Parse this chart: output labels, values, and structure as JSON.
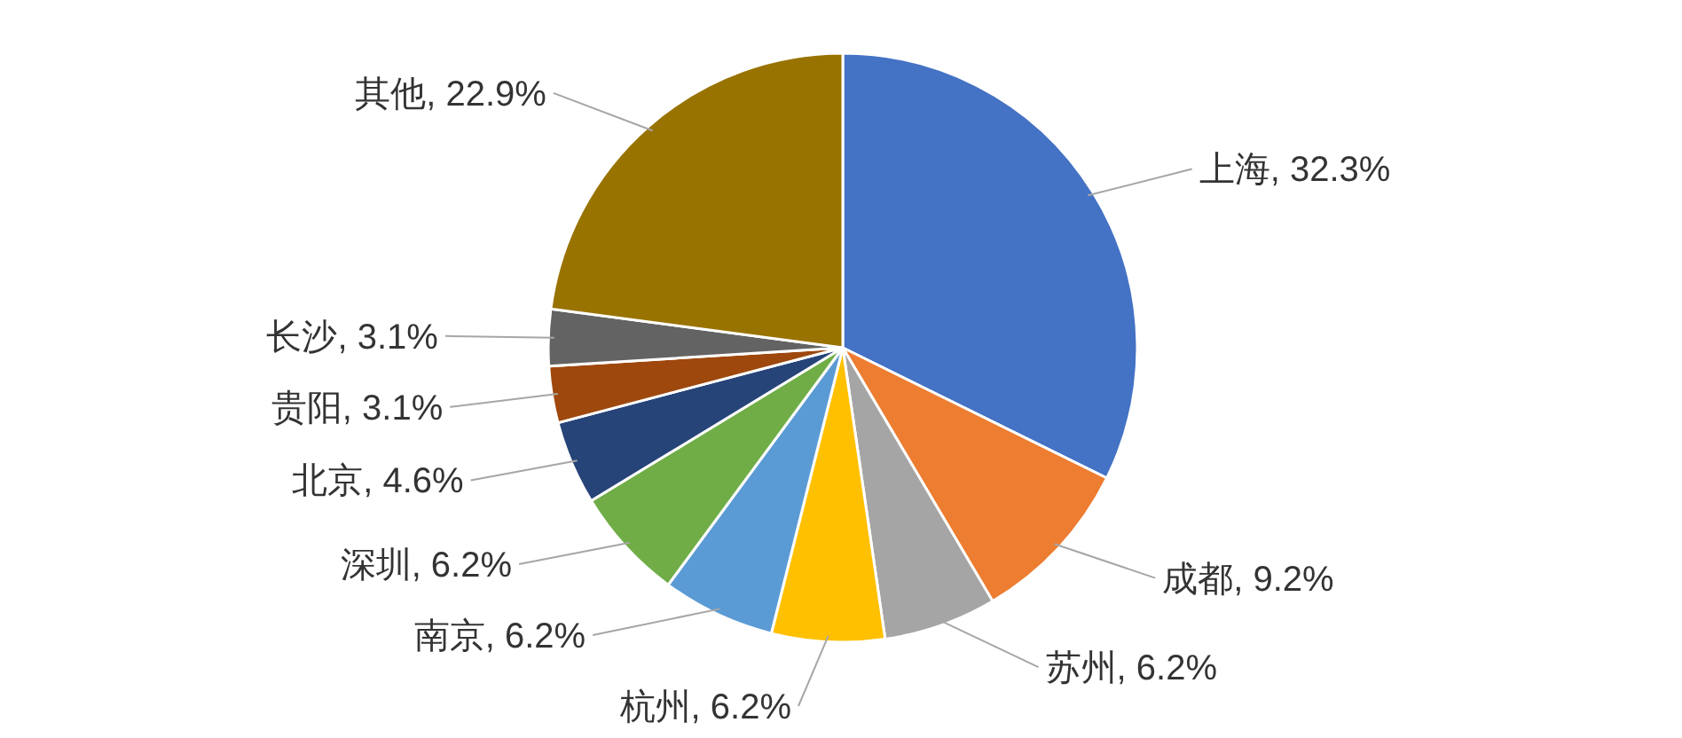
{
  "chart_data": {
    "type": "pie",
    "categories": [
      "上海",
      "成都",
      "苏州",
      "杭州",
      "南京",
      "深圳",
      "北京",
      "贵阳",
      "长沙",
      "其他"
    ],
    "values": [
      32.3,
      9.2,
      6.2,
      6.2,
      6.2,
      6.2,
      4.6,
      3.1,
      3.1,
      22.9
    ],
    "colors": [
      "#4472c4",
      "#ed7d31",
      "#a5a5a5",
      "#ffc000",
      "#5b9bd5",
      "#70ad47",
      "#264478",
      "#9e480e",
      "#636363",
      "#997300"
    ],
    "value_labels": [
      "32.3%",
      "9.2%",
      "6.2%",
      "6.2%",
      "6.2%",
      "6.2%",
      "4.6%",
      "3.1%",
      "3.1%",
      "22.9%"
    ]
  }
}
